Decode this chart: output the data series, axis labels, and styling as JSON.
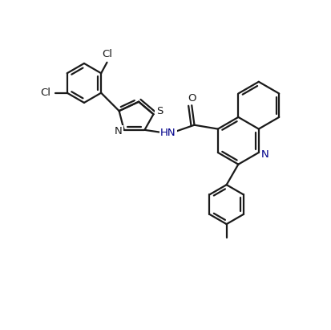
{
  "bg_color": "#ffffff",
  "line_color": "#1a1a1a",
  "text_color": "#1a1a1a",
  "blue_text": "#00008B",
  "lw": 1.6,
  "figsize": [
    4.14,
    4.11
  ],
  "dpi": 100,
  "xlim": [
    -0.5,
    9.5
  ],
  "ylim": [
    -0.5,
    9.5
  ]
}
